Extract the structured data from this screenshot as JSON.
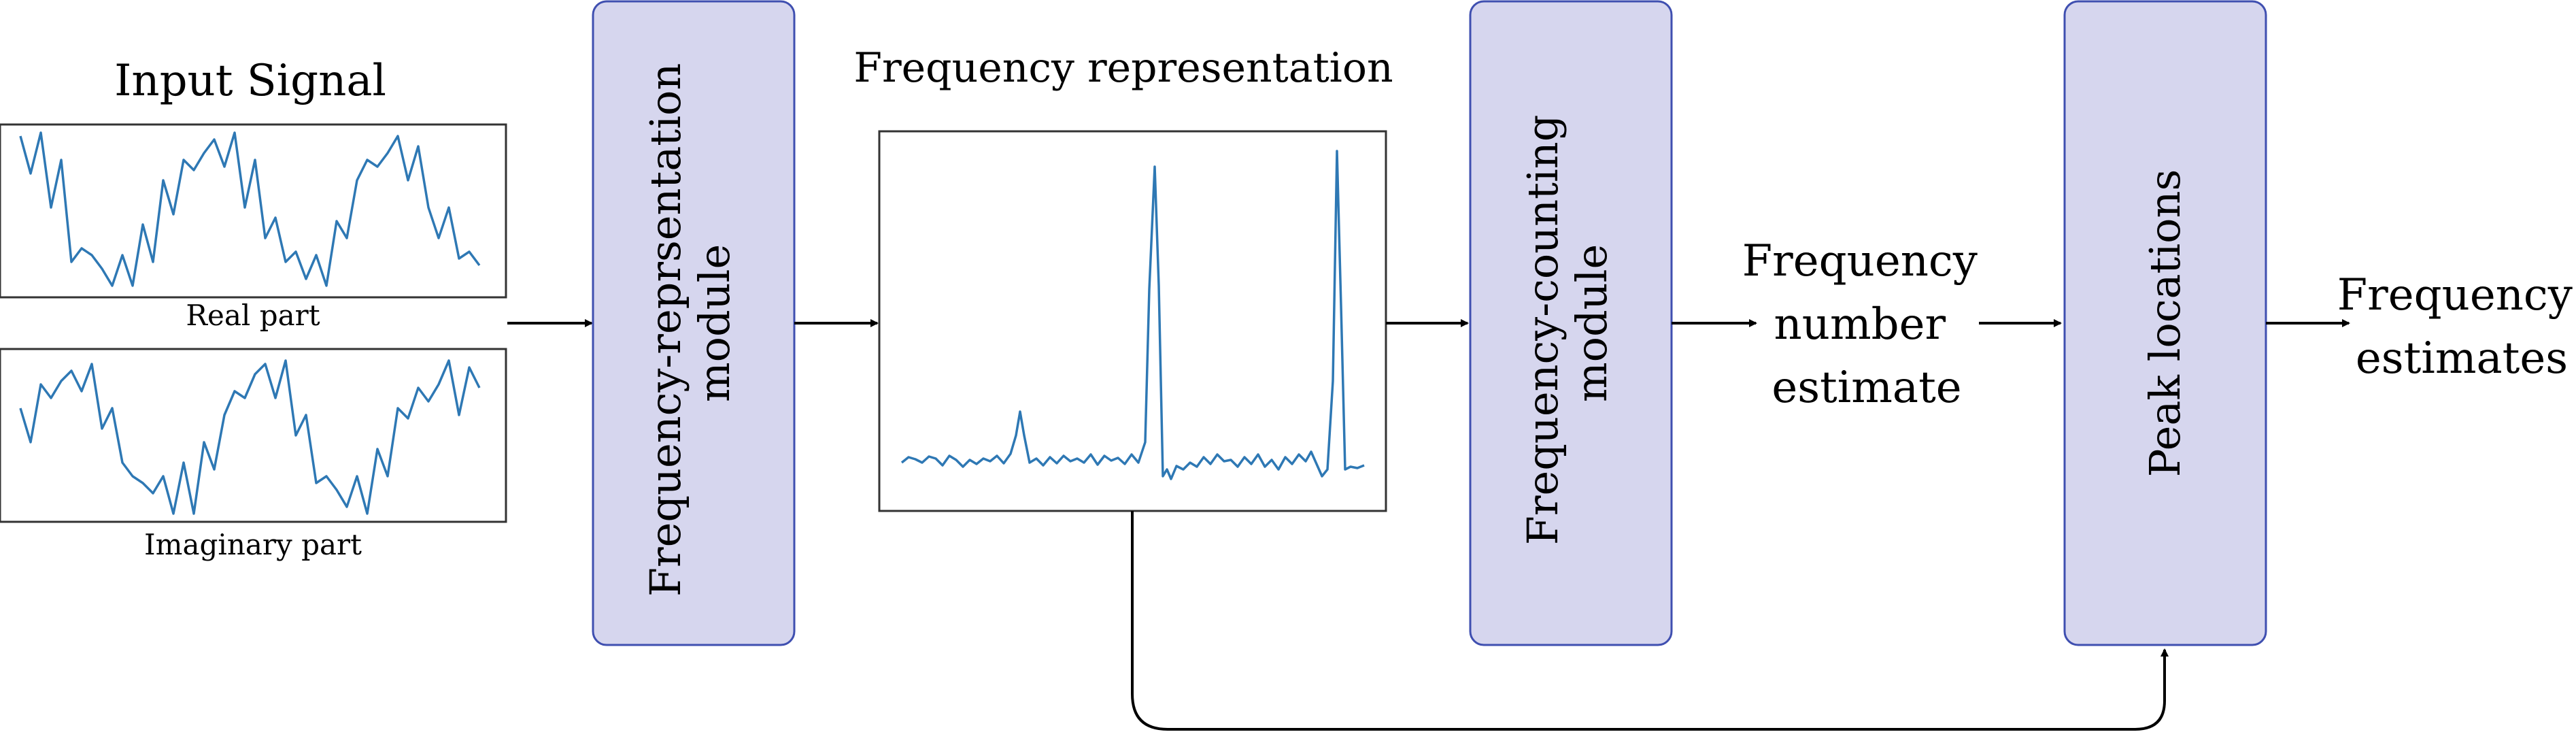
{
  "input": {
    "title": "Input Signal",
    "real_caption": "Real part",
    "imag_caption": "Imaginary part"
  },
  "modules": {
    "freq_rep": {
      "line1": "Frequency-reprsentation",
      "line2": "module"
    },
    "freq_count": {
      "line1": "Frequency-counting",
      "line2": "module"
    },
    "peak": {
      "line1": "Peak locations"
    }
  },
  "freq_rep_output": {
    "title": "Frequency representation"
  },
  "number_estimate": {
    "line1": "Frequency",
    "line2": "number",
    "line3": "estimate"
  },
  "final_output": {
    "line1": "Frequency",
    "line2": "estimates"
  },
  "colors": {
    "module_fill": "#d6d6ee",
    "module_border": "#3f4fb0",
    "signal": "#2e78b4"
  }
}
